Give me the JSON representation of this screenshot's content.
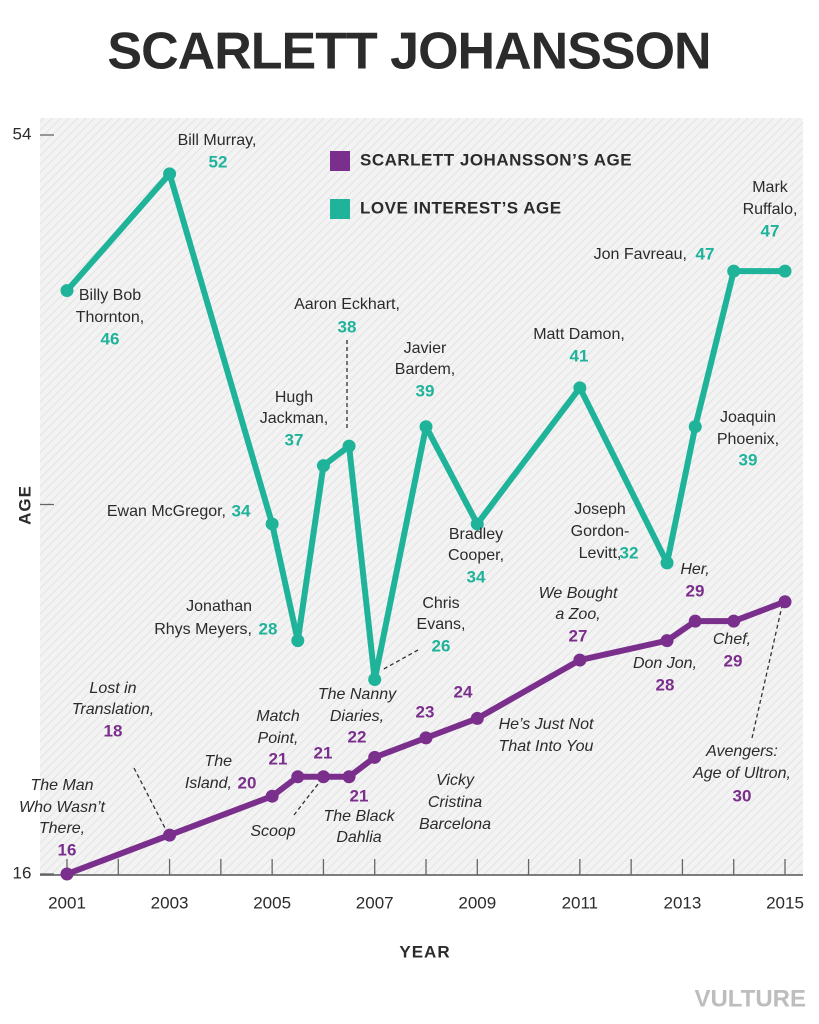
{
  "chart_data": {
    "type": "line",
    "title": "SCARLETT JOHANSSON",
    "xlabel": "YEAR",
    "ylabel": "AGE",
    "x": [
      2001,
      2003,
      2005,
      2005.5,
      2006,
      2006.5,
      2007,
      2008,
      2009,
      2011,
      2012.7,
      2013.25,
      2014,
      2015
    ],
    "xlim": [
      2001,
      2015
    ],
    "xticks": [
      2001,
      2003,
      2005,
      2007,
      2009,
      2011,
      2013,
      2015
    ],
    "xminorticks": [
      2002,
      2004,
      2006,
      2008,
      2010,
      2012,
      2014
    ],
    "ylim": [
      16,
      54
    ],
    "yticks": [
      16,
      54
    ],
    "yminorticks": [
      35
    ],
    "legend": "top",
    "series": [
      {
        "name": "SCARLETT JOHANSSON’S AGE",
        "color": "#7b2f8c",
        "values": [
          16,
          18,
          20,
          21,
          21,
          21,
          22,
          23,
          24,
          27,
          28,
          29,
          29,
          30
        ],
        "labels": [
          [
            "The Man",
            "Who Wasn’t",
            "There,"
          ],
          [
            "Lost in",
            "Translation,"
          ],
          [
            "The",
            "Island,"
          ],
          [
            "Match",
            "Point,"
          ],
          [
            "Scoop"
          ],
          [
            "The Black",
            "Dahlia"
          ],
          [
            "The Nanny",
            "Diaries,"
          ],
          [
            "Vicky",
            "Cristina",
            "Barcelona"
          ],
          [
            "He’s Just Not",
            "That Into You"
          ],
          [
            "We Bought",
            "a Zoo,"
          ],
          [
            "Don Jon,"
          ],
          [
            "Her,"
          ],
          [
            "Chef,"
          ],
          [
            "Avengers:",
            "Age of Ultron,"
          ]
        ]
      },
      {
        "name": "LOVE INTEREST’S AGE",
        "color": "#1fb39a",
        "values": [
          46,
          52,
          34,
          28,
          37,
          38,
          26,
          39,
          34,
          41,
          32,
          39,
          47,
          47
        ],
        "labels": [
          [
            "Billy Bob",
            "Thornton,"
          ],
          [
            "Bill Murray,"
          ],
          [
            "Ewan McGregor,"
          ],
          [
            "Jonathan",
            "Rhys Meyers,"
          ],
          [
            "Hugh",
            "Jackman,"
          ],
          [
            "Aaron Eckhart,"
          ],
          [
            "Chris",
            "Evans,"
          ],
          [
            "Javier",
            "Bardem,"
          ],
          [
            "Bradley",
            "Cooper,"
          ],
          [
            "Matt Damon,"
          ],
          [
            "Joseph",
            "Gordon-",
            "Levitt,"
          ],
          [
            "Joaquin",
            "Phoenix,"
          ],
          [
            "Jon Favreau,"
          ],
          [
            "Mark",
            "Ruffalo,"
          ]
        ]
      }
    ],
    "watermark": "VULTURE"
  }
}
